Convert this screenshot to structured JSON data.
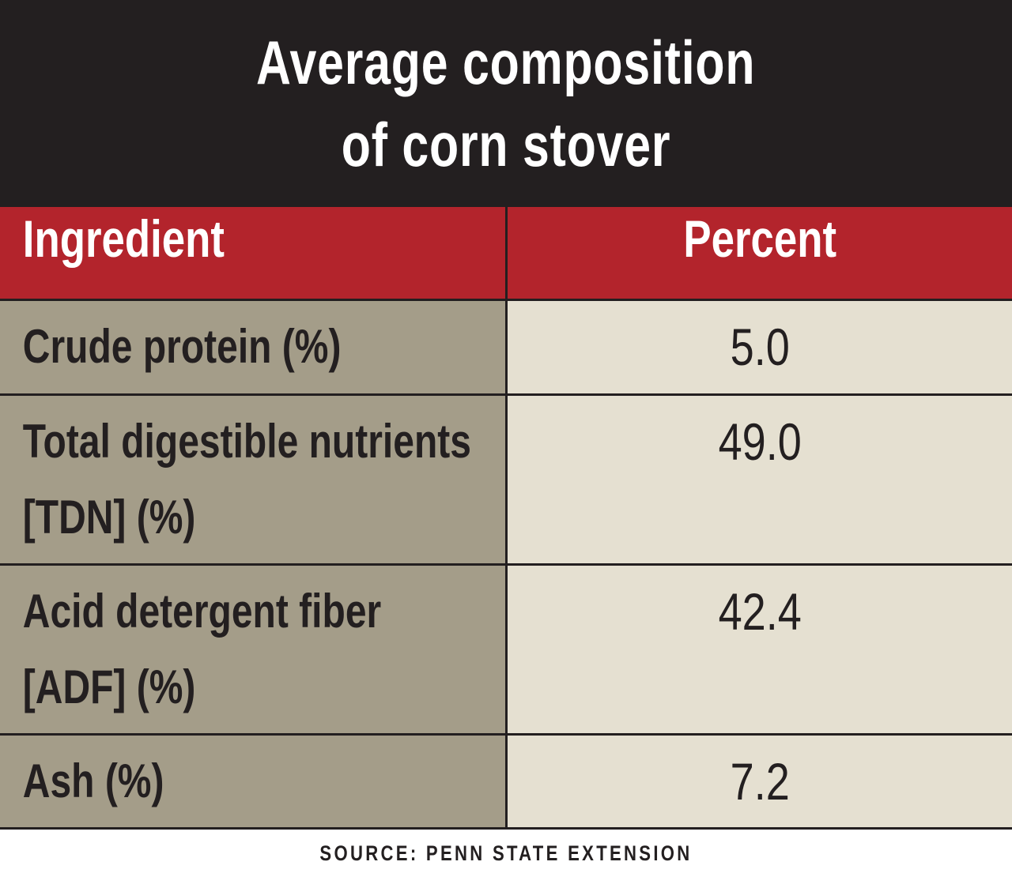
{
  "title": {
    "line1": "Average composition",
    "line2": "of corn stover"
  },
  "colors": {
    "title_background": "#231f20",
    "header_background": "#b3242c",
    "ingredient_column_background": "#a49d89",
    "percent_column_background": "#e5e0d1",
    "text_dark": "#231f20",
    "text_light": "#ffffff"
  },
  "chart_data": {
    "type": "table",
    "title": "Average composition of corn stover",
    "columns": [
      "Ingredient",
      "Percent"
    ],
    "rows": [
      {
        "ingredient": "Crude protein (%)",
        "percent": "5.0"
      },
      {
        "ingredient": "Total digestible nutrients [TDN] (%)",
        "percent": "49.0"
      },
      {
        "ingredient": "Acid detergent fiber [ADF] (%)",
        "percent": "42.4"
      },
      {
        "ingredient": "Ash (%)",
        "percent": "7.2"
      }
    ],
    "source": "SOURCE: PENN STATE EXTENSION"
  }
}
